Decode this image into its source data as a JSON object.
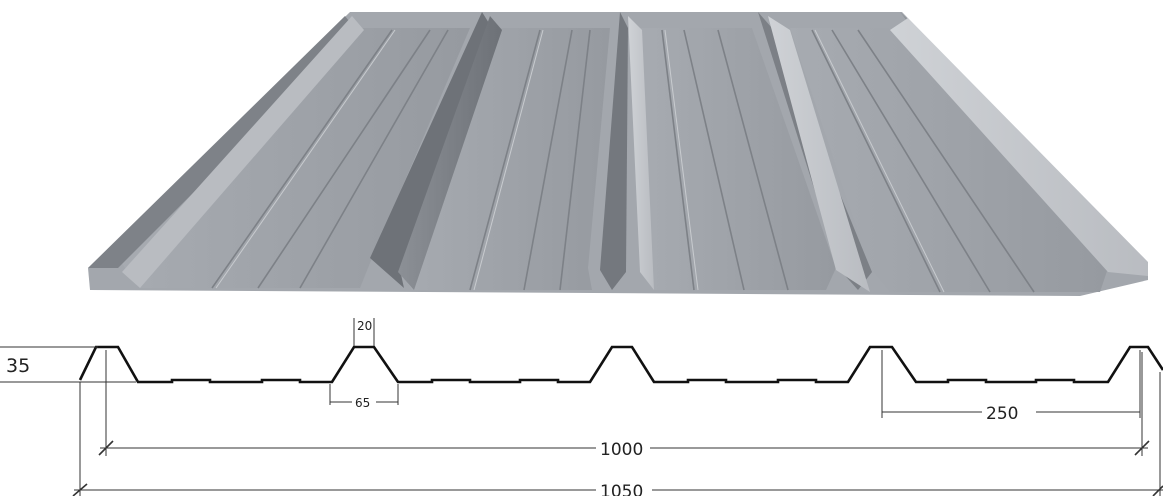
{
  "dimensions": {
    "height": "35",
    "crest_width": "20",
    "crest_base": "65",
    "pitch": "250",
    "cover_width": "1000",
    "overall_width": "1050"
  },
  "colors": {
    "sheet_light": "#c6c9ce",
    "sheet_mid": "#9ca0a6",
    "sheet_dark": "#6f7379",
    "profile_line": "#111111",
    "dim_line": "#333333"
  }
}
